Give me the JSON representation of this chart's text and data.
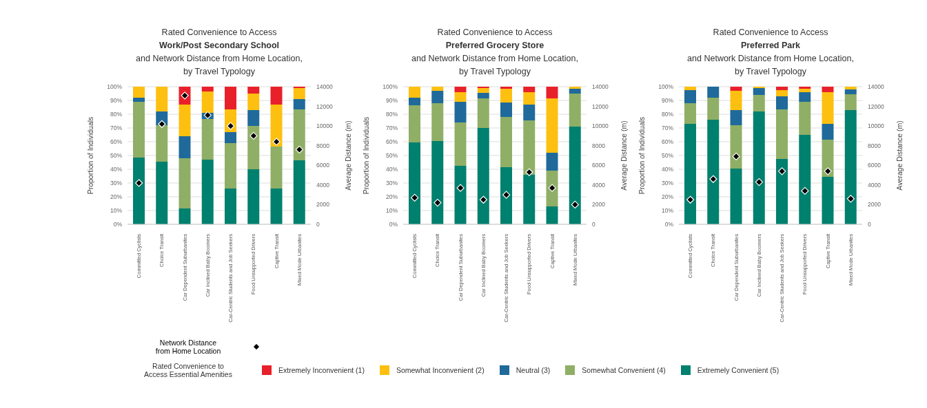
{
  "chart_data": [
    {
      "type": "bar",
      "stacked": true,
      "title": "Rated Convenience to Access\nWork/Post Secondary School\nand Network Distance from Home Location,\nby Travel Typology",
      "ylabel": "Proportion of Individuals",
      "y2label": "Average Distance (m)",
      "legend": "bottom",
      "legend_title": "Rated Convenience to\nAccess Essential Amenities",
      "grid": "y",
      "categories": [
        "Committed Cyclists",
        "Choice Transit",
        "Car Dependent Suburbanites",
        "Car Inclined Baby Boomers",
        "Car-Centric Students and Job Seekers",
        "Food Unsupported Drivers",
        "Captive Transit",
        "Mixed Mode Urbanites"
      ],
      "ylim": [
        0,
        100
      ],
      "yticks": [
        {
          "value": 0,
          "label": "0%"
        },
        {
          "value": 10,
          "label": "10%"
        },
        {
          "value": 20,
          "label": "20%"
        },
        {
          "value": 30,
          "label": "30%"
        },
        {
          "value": 40,
          "label": "40%"
        },
        {
          "value": 50,
          "label": "50%"
        },
        {
          "value": 60,
          "label": "60%"
        },
        {
          "value": 70,
          "label": "70%"
        },
        {
          "value": 80,
          "label": "80%"
        },
        {
          "value": 90,
          "label": "90%"
        },
        {
          "value": 100,
          "label": "100%"
        }
      ],
      "y2lim": [
        0,
        14000
      ],
      "y2ticks": [
        0,
        2000,
        4000,
        6000,
        8000,
        10000,
        12000,
        14000
      ],
      "series": [
        {
          "name": "Extremely Convenient (5)",
          "color": "#00806e",
          "values": [
            48.5,
            45.5,
            11.5,
            47,
            26,
            40,
            26,
            46.5
          ]
        },
        {
          "name": "Somewhat Convenient (4)",
          "color": "#8faf66",
          "values": [
            40.5,
            26.5,
            36.5,
            29.5,
            33,
            31.5,
            30.5,
            37
          ]
        },
        {
          "name": "Neutral (3)",
          "color": "#1f6a9a",
          "values": [
            3,
            10,
            16,
            4.5,
            8,
            11.5,
            0,
            7.5
          ]
        },
        {
          "name": "Somewhat Inconvenient (2)",
          "color": "#fdc010",
          "values": [
            8,
            18,
            23,
            15.5,
            16.5,
            12,
            30.5,
            8
          ]
        },
        {
          "name": "Extremely Inconvenient (1)",
          "color": "#e8202a",
          "values": [
            0,
            0,
            13,
            3.5,
            16.5,
            5,
            13,
            1
          ]
        },
        {
          "name": "Network Distance\nfrom Home Location",
          "type": "scatter",
          "axis": "y2",
          "marker": "diamond",
          "color": "#000000",
          "values": [
            4200,
            10200,
            13100,
            11100,
            10000,
            9000,
            8400,
            7600
          ]
        }
      ]
    },
    {
      "type": "bar",
      "stacked": true,
      "title": "Rated Convenience to Access\nPreferred Grocery Store\nand Network Distance from Home Location,\nby Travel Typology",
      "ylabel": "Proportion of Individuals",
      "y2label": "Average Distance (m)",
      "grid": "y",
      "categories": [
        "Committed Cyclists",
        "Choice Transit",
        "Car Dependent Suburbanites",
        "Car Inclined Baby Boomers",
        "Car-Centric Students and Job Seekers",
        "Food Unsupported Drivers",
        "Captive Transit",
        "Mixed Mode Urbanites"
      ],
      "ylim": [
        0,
        100
      ],
      "yticks": [
        {
          "value": 0,
          "label": "0%"
        },
        {
          "value": 10,
          "label": "10%"
        },
        {
          "value": 20,
          "label": "20%"
        },
        {
          "value": 30,
          "label": "30%"
        },
        {
          "value": 40,
          "label": "40%"
        },
        {
          "value": 50,
          "label": "50%"
        },
        {
          "value": 60,
          "label": "60%"
        },
        {
          "value": 70,
          "label": "70%"
        },
        {
          "value": 80,
          "label": "80%"
        },
        {
          "value": 90,
          "label": "90%"
        },
        {
          "value": 100,
          "label": "100%"
        }
      ],
      "y2lim": [
        0,
        14000
      ],
      "y2ticks": [
        0,
        2000,
        4000,
        6000,
        8000,
        10000,
        12000,
        14000
      ],
      "series": [
        {
          "color": "#00806e",
          "values": [
            59.5,
            60.5,
            42.5,
            70,
            41.5,
            36,
            13,
            71
          ]
        },
        {
          "color": "#8faf66",
          "values": [
            27,
            27.5,
            31.5,
            21.5,
            36.5,
            39.5,
            26,
            24
          ]
        },
        {
          "color": "#1f6a9a",
          "values": [
            5.5,
            9,
            15,
            4,
            10.5,
            11.5,
            13,
            3.5
          ]
        },
        {
          "color": "#fdc010",
          "values": [
            8,
            3,
            7,
            3.5,
            10,
            9,
            39.5,
            1.5
          ]
        },
        {
          "color": "#e8202a",
          "values": [
            0,
            0,
            4,
            1,
            1.5,
            4,
            8.5,
            0
          ]
        },
        {
          "type": "scatter",
          "axis": "y2",
          "marker": "diamond",
          "color": "#000000",
          "values": [
            2700,
            2200,
            3700,
            2500,
            3000,
            5300,
            3700,
            2000
          ]
        }
      ]
    },
    {
      "type": "bar",
      "stacked": true,
      "title": "Rated Convenience to Access\nPreferred Park\nand Network Distance from Home Location,\nby Travel Typology",
      "ylabel": "Proportion of Individuals",
      "y2label": "Average Distance (m)",
      "grid": "y",
      "categories": [
        "Committed Cyclists",
        "Choice Transit",
        "Car Dependent Suburbanites",
        "Car Inclined Baby Boomers",
        "Car-Centric Students and Job Seekers",
        "Food Unsupported Drivers",
        "Captive Transit",
        "Mixed Mode Urbanites"
      ],
      "ylim": [
        0,
        100
      ],
      "yticks": [
        {
          "value": 0,
          "label": "0%"
        },
        {
          "value": 10,
          "label": "10%"
        },
        {
          "value": 20,
          "label": "20%"
        },
        {
          "value": 30,
          "label": "30%"
        },
        {
          "value": 40,
          "label": "40%"
        },
        {
          "value": 50,
          "label": "50%"
        },
        {
          "value": 60,
          "label": "60%"
        },
        {
          "value": 70,
          "label": "70%"
        },
        {
          "value": 80,
          "label": "80%"
        },
        {
          "value": 90,
          "label": "90%"
        },
        {
          "value": 100,
          "label": "100%"
        }
      ],
      "y2lim": [
        0,
        14000
      ],
      "y2ticks": [
        0,
        2000,
        4000,
        6000,
        8000,
        10000,
        12000,
        14000
      ],
      "series": [
        {
          "color": "#00806e",
          "values": [
            73,
            76,
            40.5,
            82,
            47.5,
            65,
            34.5,
            83
          ]
        },
        {
          "color": "#8faf66",
          "values": [
            15,
            16,
            31.5,
            12,
            36,
            24,
            27,
            11.5
          ]
        },
        {
          "color": "#1f6a9a",
          "values": [
            9.5,
            8,
            11,
            5,
            9.5,
            7,
            11.5,
            3.5
          ]
        },
        {
          "color": "#fdc010",
          "values": [
            2.5,
            0,
            14,
            1,
            4.5,
            2.5,
            23,
            2
          ]
        },
        {
          "color": "#e8202a",
          "values": [
            0,
            0,
            3,
            0,
            2.5,
            1.5,
            4,
            0
          ]
        },
        {
          "type": "scatter",
          "axis": "y2",
          "marker": "diamond",
          "color": "#000000",
          "values": [
            2500,
            4600,
            6900,
            4300,
            5400,
            3400,
            5400,
            2600
          ]
        }
      ]
    }
  ]
}
